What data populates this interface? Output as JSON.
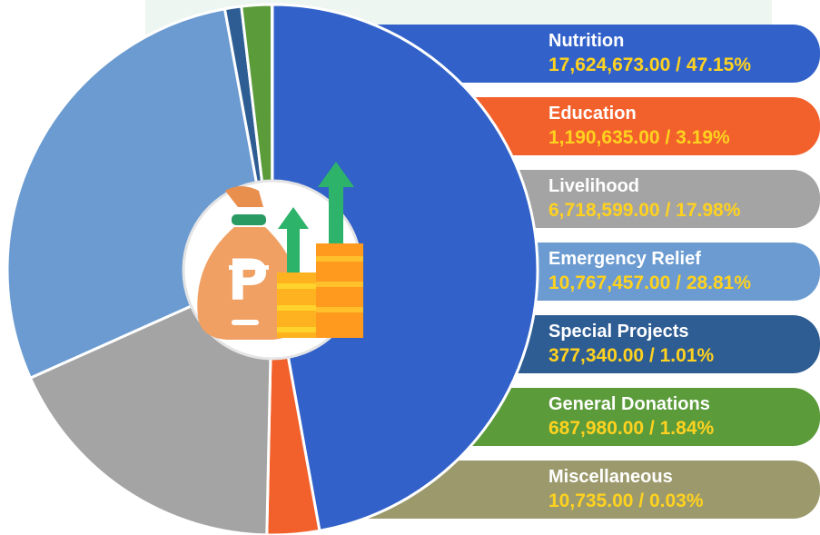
{
  "chart_data": {
    "type": "pie",
    "categories": [
      "Nutrition",
      "Education",
      "Livelihood",
      "Emergency Relief",
      "Special Projects",
      "General Donations",
      "Miscellaneous"
    ],
    "values": [
      17624673,
      1190635,
      6718599,
      10767457,
      377340,
      687980,
      10735
    ],
    "value_labels": [
      "17,624,673.00",
      "1,190,635.00",
      "6,718,599.00",
      "10,767,457.00",
      "377,340.00",
      "687,980.00",
      "10,735.00"
    ],
    "percents": [
      47.15,
      3.19,
      17.98,
      28.81,
      1.01,
      1.84,
      0.03
    ],
    "percent_labels": [
      "47.15%",
      "3.19%",
      "17.98%",
      "28.81%",
      "1.01%",
      "1.84%",
      "0.03%"
    ],
    "separator": " / ",
    "colors": [
      "#3262c9",
      "#f2612c",
      "#a4a4a4",
      "#6b9bd1",
      "#2e5d93",
      "#5b9b3a",
      "#9c9a6c"
    ]
  }
}
